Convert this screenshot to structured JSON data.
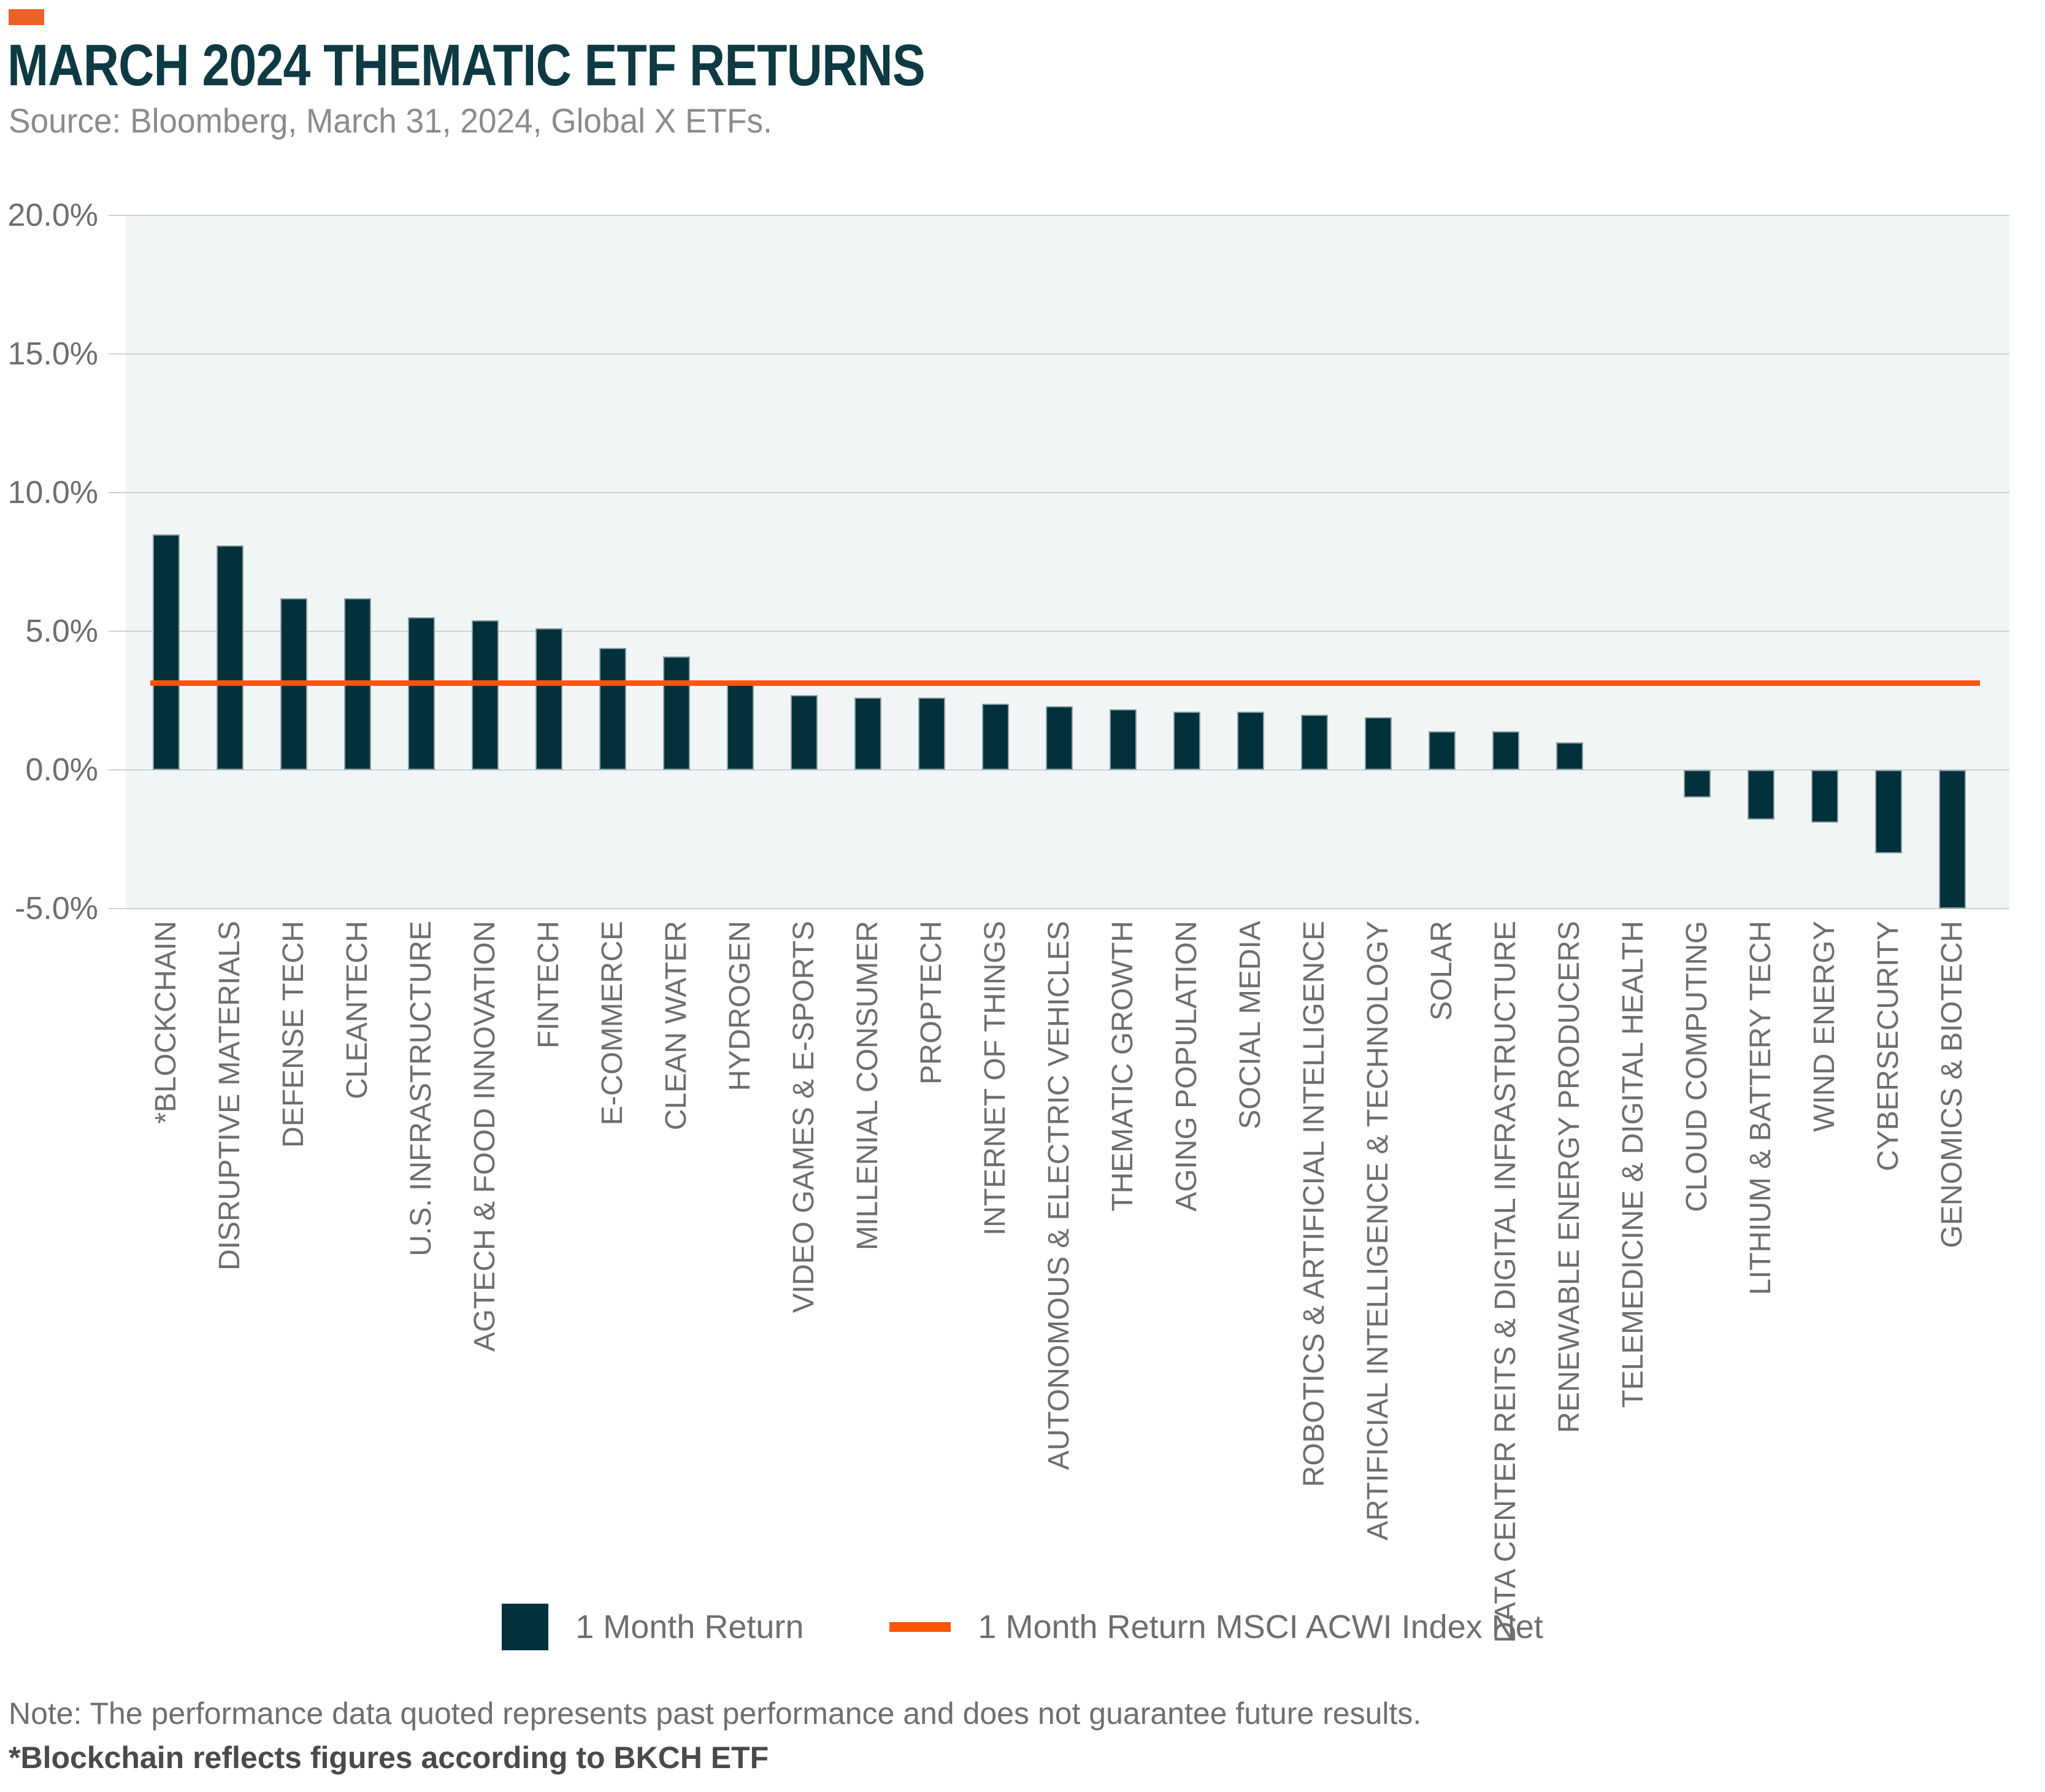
{
  "header": {
    "title": "MARCH 2024 THEMATIC ETF RETURNS",
    "source": "Source: Bloomberg, March 31, 2024, Global X ETFs."
  },
  "colors": {
    "brand_accent": "#EC6126",
    "title": "#0D3A43",
    "bar": "#03313B",
    "benchmark_line": "#FF5506",
    "plot_background": "#F1F5F6",
    "gridline": "#CBD1D4"
  },
  "chart_data": {
    "type": "bar",
    "title": "MARCH 2024 THEMATIC ETF RETURNS",
    "xlabel": "",
    "ylabel": "",
    "ylim": [
      -5,
      20
    ],
    "grid": true,
    "legend_position": "bottom",
    "yticks": [
      {
        "label": "20.0%",
        "value": 20
      },
      {
        "label": "15.0%",
        "value": 15
      },
      {
        "label": "10.0%",
        "value": 10
      },
      {
        "label": "5.0%",
        "value": 5
      },
      {
        "label": "0.0%",
        "value": 0
      },
      {
        "label": "-5.0%",
        "value": -5
      }
    ],
    "categories": [
      "*BLOCKCHAIN",
      "DISRUPTIVE MATERIALS",
      "DEFENSE TECH",
      "CLEANTECH",
      "U.S. INFRASTRUCTURE",
      "AGTECH & FOOD INNOVATION",
      "FINTECH",
      "E-COMMERCE",
      "CLEAN WATER",
      "HYDROGEN",
      "VIDEO GAMES & E-SPORTS",
      "MILLENIAL CONSUMER",
      "PROPTECH",
      "INTERNET OF THINGS",
      "AUTONOMOUS & ELECTRIC VEHICLES",
      "THEMATIC GROWTH",
      "AGING POPULATION",
      "SOCIAL MEDIA",
      "ROBOTICS & ARTIFICIAL INTELLIGENCE",
      "ARTIFICIAL INTELLIGENCE & TECHNOLOGY",
      "SOLAR",
      "DATA CENTER REITS & DIGITAL INFRASTRUCTURE",
      "RENEWABLE ENERGY PRODUCERS",
      "TELEMEDICINE & DIGITAL HEALTH",
      "CLOUD COMPUTING",
      "LITHIUM & BATTERY TECH",
      "WIND ENERGY",
      "CYBERSECURITY",
      "GENOMICS & BIOTECH"
    ],
    "values": [
      8.5,
      8.1,
      6.2,
      6.2,
      5.5,
      5.4,
      5.1,
      4.4,
      4.1,
      3.1,
      2.7,
      2.6,
      2.6,
      2.4,
      2.3,
      2.2,
      2.1,
      2.1,
      2.0,
      1.9,
      1.4,
      1.4,
      1.0,
      0.0,
      -1.0,
      -1.8,
      -1.9,
      -3.0,
      -5.0
    ],
    "series_label": "1 Month Return",
    "benchmark_line": {
      "label": "1 Month Return MSCI ACWI Index Net",
      "value": 3.13
    }
  },
  "legend": {
    "bar_label": "1 Month Return",
    "line_label": "1 Month Return MSCI ACWI Index Net"
  },
  "footer": {
    "note": "Note: The performance data quoted represents past performance and does not guarantee future results.",
    "footnote": "*Blockchain reflects figures according to BKCH ETF"
  }
}
